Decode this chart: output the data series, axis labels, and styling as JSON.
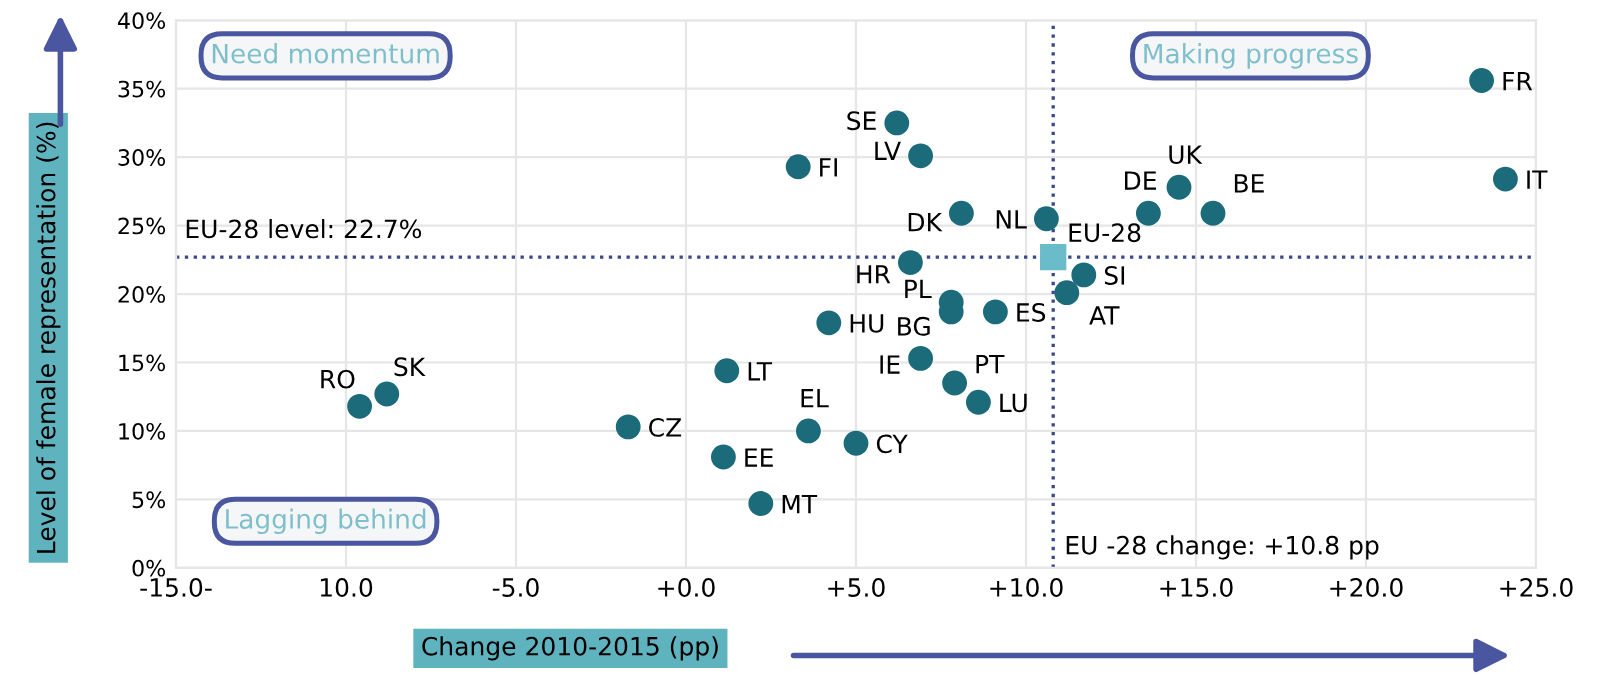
{
  "chart_data": {
    "type": "scatter",
    "xlabel": "Change 2010-2015 (pp)",
    "ylabel": "Level of female representation (%)",
    "xlim": [
      -15,
      25
    ],
    "ylim": [
      0,
      40
    ],
    "xticks": [
      {
        "value": -15,
        "label": "-15.0-"
      },
      {
        "value": -10,
        "label": "10.0"
      },
      {
        "value": -5,
        "label": "-5.0"
      },
      {
        "value": 0,
        "label": "+0.0"
      },
      {
        "value": 5,
        "label": "+5.0"
      },
      {
        "value": 10,
        "label": "+10.0"
      },
      {
        "value": 15,
        "label": "+15.0"
      },
      {
        "value": 20,
        "label": "+20.0"
      },
      {
        "value": 25,
        "label": "+25.0"
      }
    ],
    "yticks": [
      {
        "value": 0,
        "label": "0%"
      },
      {
        "value": 5,
        "label": "5%"
      },
      {
        "value": 10,
        "label": "10%"
      },
      {
        "value": 15,
        "label": "15%"
      },
      {
        "value": 20,
        "label": "20%"
      },
      {
        "value": 25,
        "label": "25%"
      },
      {
        "value": 30,
        "label": "30%"
      },
      {
        "value": 35,
        "label": "35%"
      },
      {
        "value": 40,
        "label": "40%"
      }
    ],
    "grid": true,
    "marker": "circle",
    "series": [
      {
        "color": "#1c6b7a",
        "x": [
          3.3,
          4.2,
          1.2,
          -9.6,
          -8.8,
          -1.7,
          3.6,
          1.1,
          2.2,
          5.0,
          6.2,
          6.9,
          8.1,
          10.6,
          6.6,
          7.8,
          7.8,
          9.1,
          11.7,
          11.2,
          6.9,
          7.9,
          8.6,
          13.6,
          14.5,
          15.5,
          23.4,
          24.1
        ],
        "values": [
          29.3,
          17.9,
          14.4,
          11.8,
          12.7,
          10.3,
          10.0,
          8.1,
          4.7,
          9.1,
          32.5,
          30.1,
          25.9,
          25.5,
          22.3,
          19.4,
          18.7,
          18.7,
          21.4,
          20.1,
          15.3,
          13.5,
          12.1,
          25.9,
          27.8,
          25.9,
          35.6,
          28.4
        ]
      },
      {
        "color": "#6bbccb",
        "marker": "square",
        "x": [
          10.8
        ],
        "values": [
          22.7
        ]
      }
    ],
    "ref_lines": [
      {
        "axis": "y",
        "value": 22.7,
        "label": "EU-28 level: 22.7%",
        "color": "#3b4a8a",
        "line_style": "dotted"
      },
      {
        "axis": "x",
        "value": 10.8,
        "label": "EU -28 change: +10.8 pp",
        "color": "#3b4a8a",
        "line_style": "dotted"
      }
    ],
    "annotations": [
      "Need momentum",
      "Making progress",
      "Lagging behind",
      {
        "text": "FI",
        "x": 3.3,
        "y": 29.3
      },
      {
        "text": "HU",
        "x": 4.2,
        "y": 17.9
      },
      {
        "text": "LT",
        "x": 1.2,
        "y": 14.4
      },
      {
        "text": "RO",
        "x": -9.6,
        "y": 11.8
      },
      {
        "text": "SK",
        "x": -8.8,
        "y": 12.7
      },
      {
        "text": "CZ",
        "x": -1.7,
        "y": 10.3
      },
      {
        "text": "EL",
        "x": 3.6,
        "y": 10.0
      },
      {
        "text": "EE",
        "x": 1.1,
        "y": 8.1
      },
      {
        "text": "MT",
        "x": 2.2,
        "y": 4.7
      },
      {
        "text": "CY",
        "x": 5.0,
        "y": 9.1
      },
      {
        "text": "SE",
        "x": 6.2,
        "y": 32.5
      },
      {
        "text": "LV",
        "x": 6.9,
        "y": 30.1
      },
      {
        "text": "DK",
        "x": 8.1,
        "y": 25.9
      },
      {
        "text": "NL",
        "x": 10.6,
        "y": 25.5
      },
      {
        "text": "HR",
        "x": 6.6,
        "y": 22.3
      },
      {
        "text": "PL",
        "x": 7.8,
        "y": 19.4
      },
      {
        "text": "BG",
        "x": 7.8,
        "y": 18.7
      },
      {
        "text": "ES",
        "x": 9.1,
        "y": 18.7
      },
      {
        "text": "SI",
        "x": 11.7,
        "y": 21.4
      },
      {
        "text": "AT",
        "x": 11.2,
        "y": 20.1
      },
      {
        "text": "IE",
        "x": 6.9,
        "y": 15.3
      },
      {
        "text": "PT",
        "x": 7.9,
        "y": 13.5
      },
      {
        "text": "LU",
        "x": 8.6,
        "y": 12.1
      },
      {
        "text": "DE",
        "x": 13.6,
        "y": 25.9
      },
      {
        "text": "UK",
        "x": 14.5,
        "y": 27.8
      },
      {
        "text": "BE",
        "x": 15.5,
        "y": 25.9
      },
      {
        "text": "FR",
        "x": 23.4,
        "y": 35.6
      },
      {
        "text": "IT",
        "x": 24.1,
        "y": 28.4
      },
      {
        "text": "EU-28",
        "x": 10.8,
        "y": 22.7
      }
    ]
  }
}
